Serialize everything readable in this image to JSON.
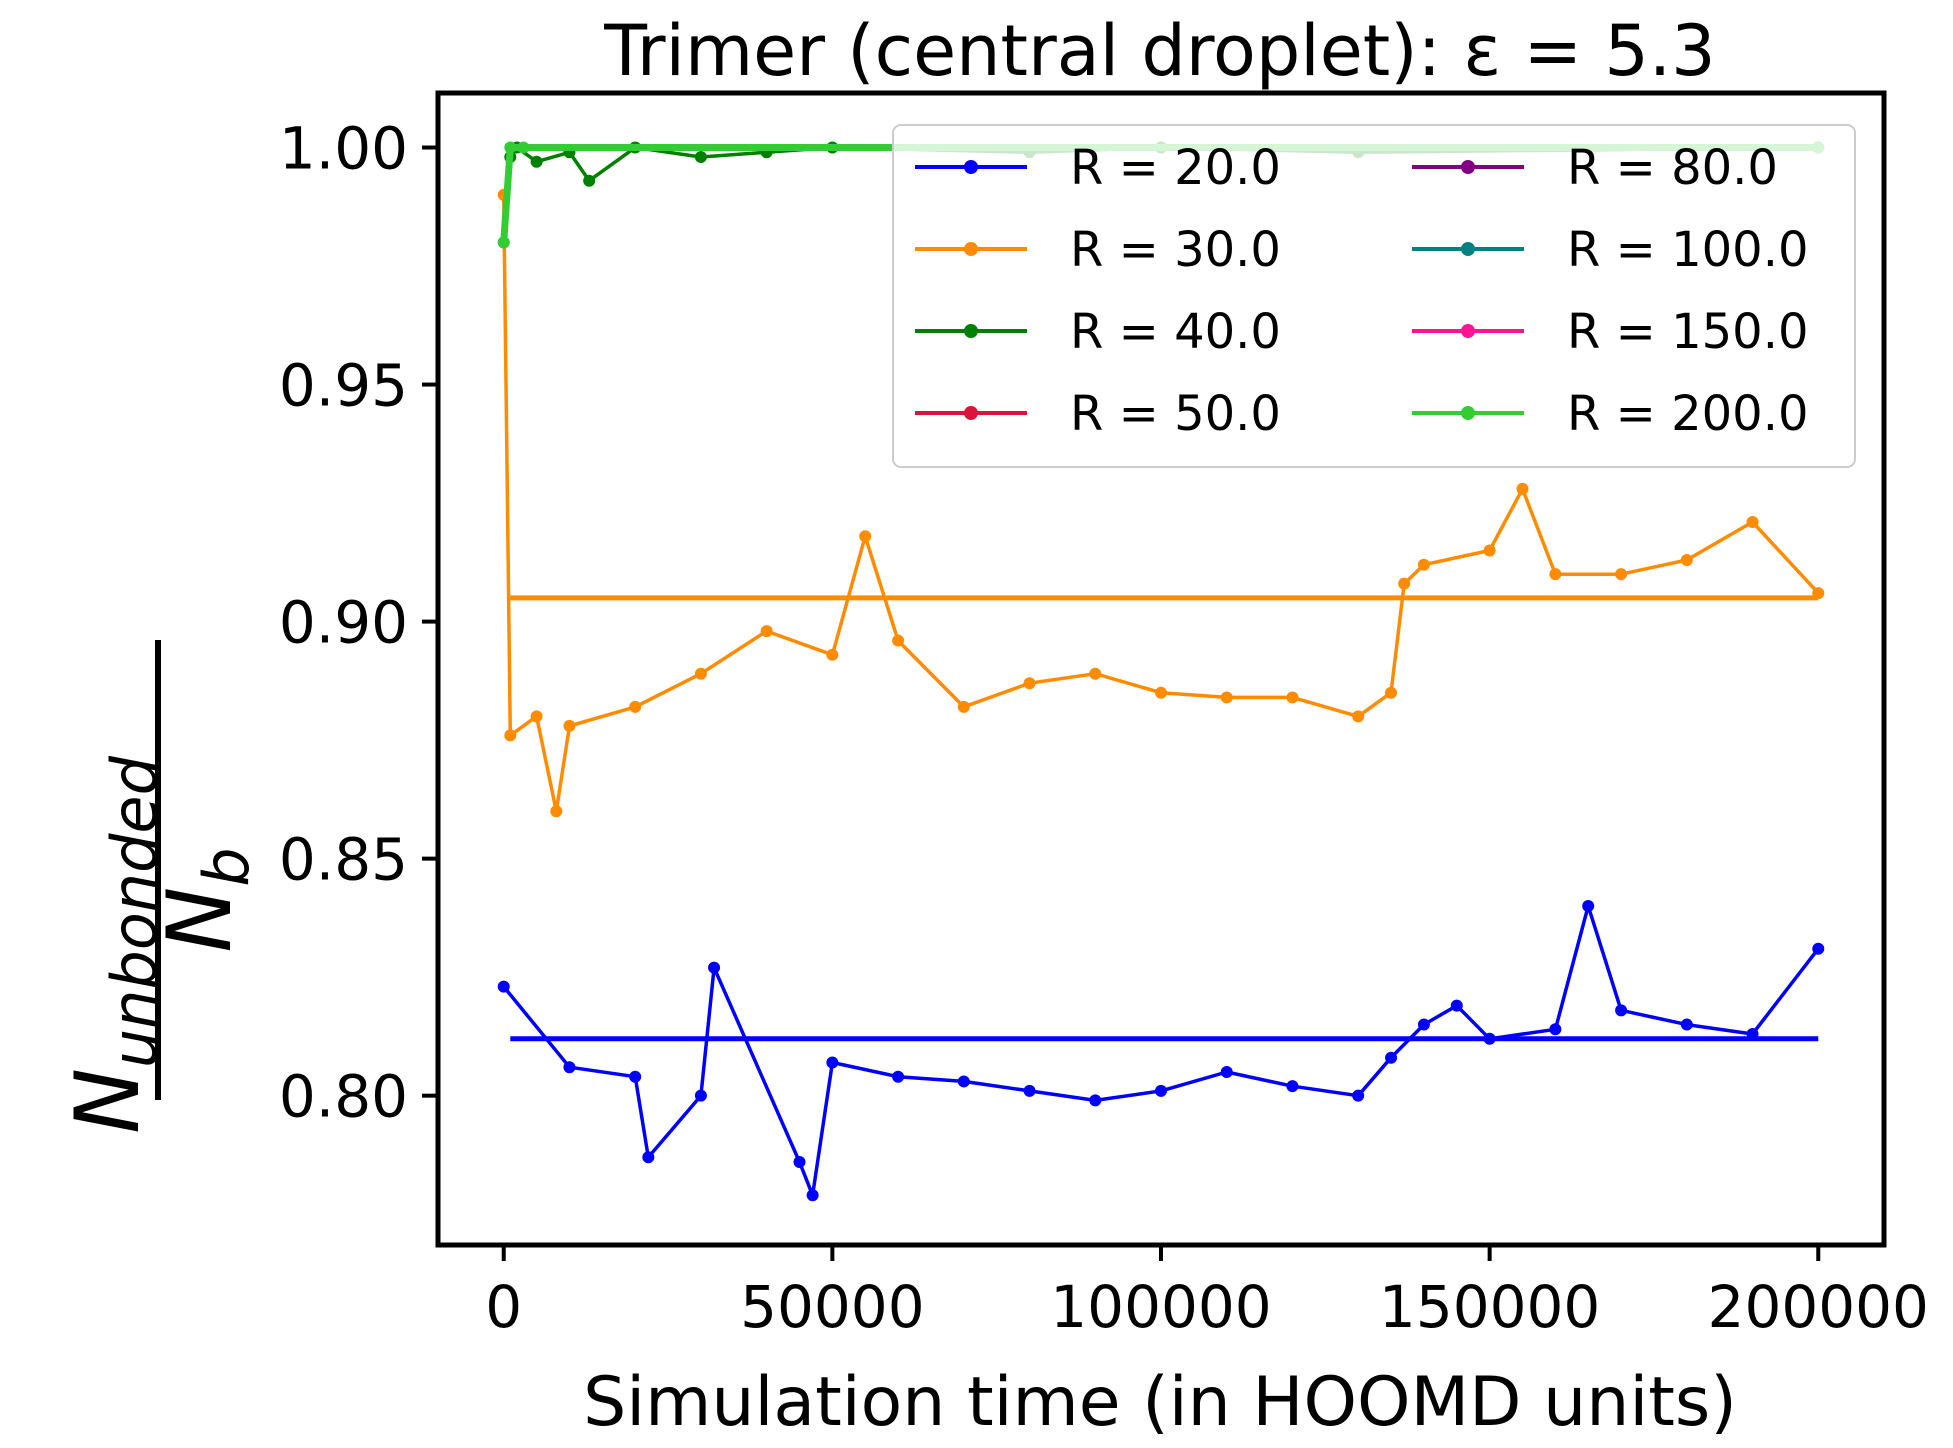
{
  "chart_data": {
    "type": "line",
    "title": "Trimer (central droplet): ε = 5.3",
    "xlabel": "Simulation time (in HOOMD units)",
    "ylabel": {
      "numerator_main": "N",
      "numerator_sub": "unbonded",
      "denominator_main": "N",
      "denominator_sub": "b"
    },
    "xlim": [
      -10000,
      210000
    ],
    "ylim": [
      0.7685,
      1.0115
    ],
    "xticks": [
      0,
      50000,
      100000,
      150000,
      200000
    ],
    "xtick_labels": [
      "0",
      "50000",
      "100000",
      "150000",
      "200000"
    ],
    "yticks": [
      0.8,
      0.85,
      0.9,
      0.95,
      1.0
    ],
    "ytick_labels": [
      "0.80",
      "0.85",
      "0.90",
      "0.95",
      "1.00"
    ],
    "grid": false,
    "legend_placement": "top-right",
    "legend_columns": 2,
    "series": [
      {
        "name": "R = 20.0",
        "color": "#0000ff",
        "marker": true,
        "mean": 0.812,
        "x": [
          0,
          10000,
          20000,
          22000,
          30000,
          32000,
          45000,
          47000,
          50000,
          60000,
          70000,
          80000,
          90000,
          100000,
          110000,
          120000,
          130000,
          135000,
          140000,
          145000,
          150000,
          160000,
          165000,
          170000,
          180000,
          190000,
          200000
        ],
        "values": [
          0.823,
          0.806,
          0.804,
          0.787,
          0.8,
          0.827,
          0.786,
          0.779,
          0.807,
          0.804,
          0.803,
          0.801,
          0.799,
          0.801,
          0.805,
          0.802,
          0.8,
          0.808,
          0.815,
          0.819,
          0.812,
          0.814,
          0.84,
          0.818,
          0.815,
          0.813,
          0.831
        ]
      },
      {
        "name": "R = 30.0",
        "color": "#ff8c00",
        "marker": true,
        "mean": 0.905,
        "x": [
          0,
          1000,
          5000,
          8000,
          10000,
          20000,
          30000,
          40000,
          50000,
          55000,
          60000,
          70000,
          80000,
          90000,
          100000,
          110000,
          120000,
          130000,
          135000,
          137000,
          140000,
          150000,
          155000,
          160000,
          170000,
          180000,
          190000,
          200000
        ],
        "values": [
          0.99,
          0.876,
          0.88,
          0.86,
          0.878,
          0.882,
          0.889,
          0.898,
          0.893,
          0.918,
          0.896,
          0.882,
          0.887,
          0.889,
          0.885,
          0.884,
          0.884,
          0.88,
          0.885,
          0.908,
          0.912,
          0.915,
          0.928,
          0.91,
          0.91,
          0.913,
          0.921,
          0.906
        ]
      },
      {
        "name": "R = 40.0",
        "color": "#008000",
        "marker": true,
        "mean": 1.0,
        "x": [
          0,
          1000,
          2000,
          5000,
          10000,
          13000,
          20000,
          30000,
          40000,
          50000,
          80000,
          100000,
          130000,
          200000
        ],
        "values": [
          0.98,
          0.998,
          1.0,
          0.997,
          0.999,
          0.993,
          1.0,
          0.998,
          0.999,
          1.0,
          0.999,
          1.0,
          0.999,
          1.0
        ]
      },
      {
        "name": "R = 50.0",
        "color": "#dc143c",
        "marker": true
      },
      {
        "name": "R = 80.0",
        "color": "#800080",
        "marker": true
      },
      {
        "name": "R = 100.0",
        "color": "#008080",
        "marker": true
      },
      {
        "name": "R = 150.0",
        "color": "#ff1493",
        "marker": true
      },
      {
        "name": "R = 200.0",
        "color": "#32cd32",
        "marker": true,
        "mean": 1.0,
        "x": [
          0,
          1000,
          3000,
          200000
        ],
        "values": [
          0.98,
          1.0,
          1.0,
          1.0
        ]
      }
    ]
  }
}
